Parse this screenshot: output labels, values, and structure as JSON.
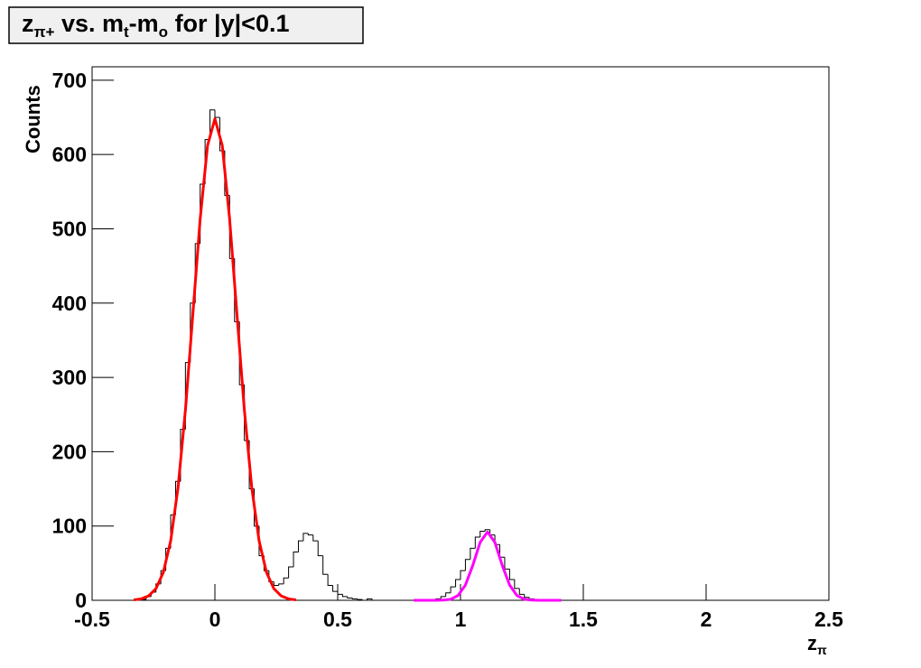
{
  "chart_data": {
    "type": "histogram",
    "title_parts": [
      "z",
      "π+",
      " vs. m",
      "t",
      "-m",
      "o",
      " for |y|<0.1"
    ],
    "xlabel_parts": [
      "z",
      "π"
    ],
    "ylabel": "Counts",
    "xlim": [
      -0.5,
      2.5
    ],
    "ylim": [
      0,
      718
    ],
    "xticks": [
      -0.5,
      0,
      0.5,
      1,
      1.5,
      2,
      2.5
    ],
    "yticks": [
      0,
      100,
      200,
      300,
      400,
      500,
      600,
      700
    ],
    "color": "#000000",
    "bins": [
      -0.3,
      -0.28,
      -0.26,
      -0.24,
      -0.22,
      -0.2,
      -0.18,
      -0.16,
      -0.14,
      -0.12,
      -0.1,
      -0.08,
      -0.06,
      -0.04,
      -0.02,
      0,
      0.02,
      0.04,
      0.06,
      0.08,
      0.1,
      0.12,
      0.14,
      0.16,
      0.18,
      0.2,
      0.22,
      0.24,
      0.26,
      0.28,
      0.3,
      0.32,
      0.34,
      0.36,
      0.38,
      0.4,
      0.42,
      0.44,
      0.46,
      0.48,
      0.5,
      0.52,
      0.54,
      0.56,
      0.58,
      0.6,
      0.62,
      0.64,
      0.66,
      0.68,
      0.7,
      0.72,
      0.74,
      0.76,
      0.78,
      0.8,
      0.82,
      0.84,
      0.86,
      0.88,
      0.9,
      0.92,
      0.94,
      0.96,
      0.98,
      1,
      1.02,
      1.04,
      1.06,
      1.08,
      1.1,
      1.12,
      1.14,
      1.16,
      1.18,
      1.2,
      1.22,
      1.24,
      1.26,
      1.28,
      1.3,
      1.32,
      1.34,
      1.36,
      1.38,
      1.4
    ],
    "counts": [
      1,
      5,
      11,
      22,
      40,
      70,
      115,
      160,
      230,
      320,
      400,
      480,
      560,
      620,
      660,
      650,
      605,
      545,
      460,
      375,
      290,
      215,
      150,
      100,
      60,
      40,
      25,
      20,
      22,
      30,
      45,
      65,
      80,
      90,
      88,
      80,
      60,
      35,
      20,
      12,
      8,
      5,
      3,
      2,
      1,
      0,
      2,
      0,
      0,
      0,
      0,
      0,
      0,
      0,
      0,
      0,
      0,
      0,
      0,
      0,
      2,
      5,
      10,
      18,
      28,
      40,
      55,
      70,
      85,
      93,
      95,
      88,
      75,
      58,
      42,
      28,
      16,
      8,
      4,
      2,
      1,
      0,
      0,
      0,
      0
    ],
    "curves": [
      {
        "color": "#ff0000",
        "x": [
          -0.33,
          -0.3,
          -0.27,
          -0.24,
          -0.21,
          -0.18,
          -0.15,
          -0.12,
          -0.09,
          -0.06,
          -0.03,
          0,
          0.03,
          0.06,
          0.09,
          0.12,
          0.15,
          0.18,
          0.21,
          0.24,
          0.27,
          0.3,
          0.33
        ],
        "values": [
          0.6,
          1.9,
          5.9,
          15.7,
          37.6,
          80,
          152,
          256,
          384,
          513,
          612,
          648,
          612,
          513,
          384,
          256,
          152,
          80,
          37.6,
          15.7,
          5.9,
          1.9,
          0.6
        ]
      },
      {
        "color": "#ff00ff",
        "x": [
          0.81,
          0.84,
          0.87,
          0.9,
          0.93,
          0.96,
          0.99,
          1.02,
          1.05,
          1.08,
          1.11,
          1.14,
          1.17,
          1.2,
          1.23,
          1.26,
          1.29,
          1.32,
          1.35,
          1.38,
          1.41
        ],
        "values": [
          0,
          0,
          0.002,
          0.03,
          0.23,
          1.4,
          6.4,
          20.5,
          47,
          78,
          92,
          78,
          47,
          20.5,
          6.4,
          1.4,
          0.23,
          0.03,
          0.002,
          0,
          0
        ]
      }
    ]
  }
}
